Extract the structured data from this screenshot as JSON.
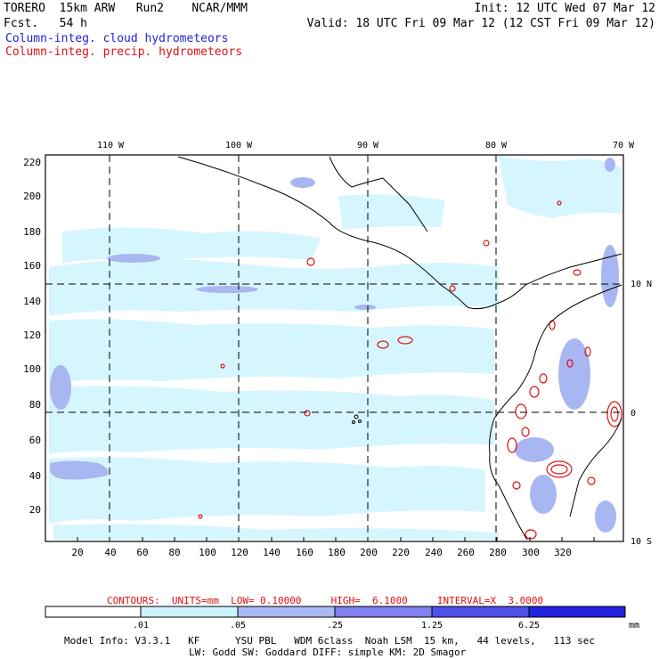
{
  "header": {
    "line1_left": "TORERO  15km ARW   Run2    NCAR/MMM",
    "line2_left": "Fcst.   54 h",
    "line1_right": "Init: 12 UTC Wed 07 Mar 12",
    "line2_right": "Valid: 18 UTC Fri 09 Mar 12 (12 CST Fri 09 Mar 12)"
  },
  "legend": {
    "cloud": "Column-integ. cloud hydrometeors",
    "precip": "Column-integ. precip. hydrometeors",
    "cloud_color": "#2222dd",
    "precip_color": "#dd1111"
  },
  "map": {
    "lon_labels": [
      "110 W",
      "100 W",
      "90 W",
      "80 W",
      "70 W"
    ],
    "lat_labels": [
      "10 N",
      "0",
      "10 S"
    ],
    "x_ticks": [
      "20",
      "40",
      "60",
      "80",
      "100",
      "120",
      "140",
      "160",
      "180",
      "200",
      "220",
      "240",
      "260",
      "280",
      "300",
      "320"
    ],
    "y_ticks": [
      "20",
      "40",
      "60",
      "80",
      "100",
      "120",
      "140",
      "160",
      "180",
      "200",
      "220"
    ]
  },
  "contours": {
    "text": "CONTOURS:  UNITS=mm  LOW= 0.10000     HIGH=  6.1000     INTERVAL=X  3.0000"
  },
  "colorbar": {
    "labels": [
      ".01",
      ".05",
      ".25",
      "1.25",
      "6.25"
    ],
    "units": "mm",
    "colors": [
      "#ffffff",
      "#ccf4ff",
      "#aab8f4",
      "#8080f0",
      "#5050ea",
      "#2222e0"
    ]
  },
  "model_info": {
    "line1": "Model Info: V3.3.1   KF      YSU PBL   WDM 6class  Noah LSM  15 km,   44 levels,   113 sec",
    "line2": "LW: Godd SW: Goddard DIFF: simple KM: 2D Smagor"
  }
}
